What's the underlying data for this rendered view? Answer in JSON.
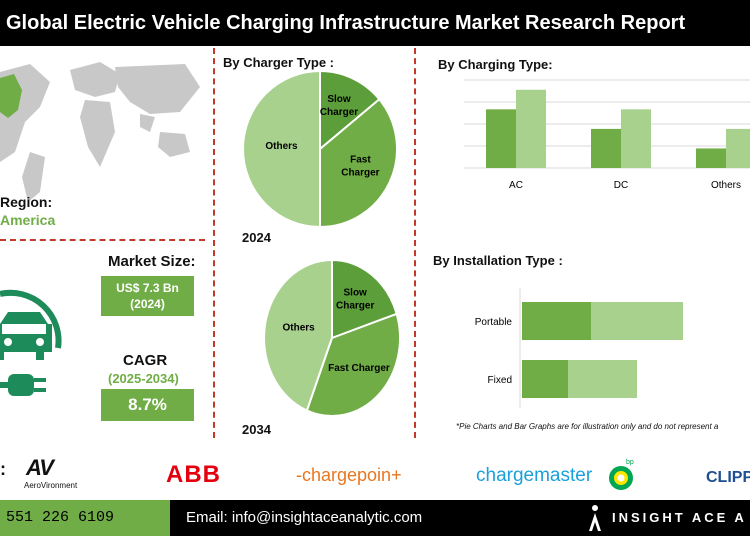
{
  "header": {
    "title": "Global Electric Vehicle Charging Infrastructure Market Research Report"
  },
  "region": {
    "label": "Region:",
    "value": "America"
  },
  "market_size": {
    "label": "Market Size:",
    "value": "US$ 7.3 Bn",
    "year": "(2024)"
  },
  "cagr": {
    "label": "CAGR",
    "period": "(2025-2034)",
    "value": "8.7%"
  },
  "charger_type": {
    "title": "By Charger Type :"
  },
  "charging_type": {
    "title": "By Charging Type:"
  },
  "installation_type": {
    "title": "By Installation Type :"
  },
  "note": "*Pie Charts and Bar Graphs are for illustration only and do not represent a",
  "logos": {
    "av_mark": "AV",
    "av_name": "AeroVironment",
    "abb": "ABB",
    "chargepoint": "-chargepoin+",
    "chargemaster": "chargemaster",
    "bp": "bp",
    "clipper": "CLIPP"
  },
  "footer": {
    "phone": "551 226 6109",
    "email": "Email: info@insightaceanalytic.com",
    "brand": "INSIGHT ACE A"
  },
  "colors": {
    "dark_green": "#5c9e3a",
    "mid_green": "#70ad47",
    "light_green": "#a9d18e",
    "accent_red": "#c0392b"
  },
  "chart_data": [
    {
      "type": "pie",
      "year_label": "2024",
      "slices": [
        {
          "label": "Others",
          "value": 50
        },
        {
          "label": "Slow Charger",
          "value": 14
        },
        {
          "label": "Fast Charger",
          "value": 36
        }
      ]
    },
    {
      "type": "pie",
      "year_label": "2034",
      "slices": [
        {
          "label": "Others",
          "value": 44
        },
        {
          "label": "Slow Charger",
          "value": 20
        },
        {
          "label": "Fast Charger",
          "value": 36
        }
      ]
    },
    {
      "type": "bar",
      "categories": [
        "AC",
        "DC",
        "Others"
      ],
      "series": [
        {
          "values": [
            3,
            2,
            1
          ]
        },
        {
          "values": [
            4,
            3,
            2
          ]
        }
      ],
      "ylim": [
        0,
        4.5
      ]
    },
    {
      "type": "bar",
      "orientation": "horizontal",
      "stacked": true,
      "categories": [
        "Portable",
        "Fixed"
      ],
      "series": [
        {
          "values": [
            3,
            2
          ]
        },
        {
          "values": [
            4,
            3
          ]
        }
      ],
      "xlim": [
        0,
        10
      ]
    }
  ]
}
